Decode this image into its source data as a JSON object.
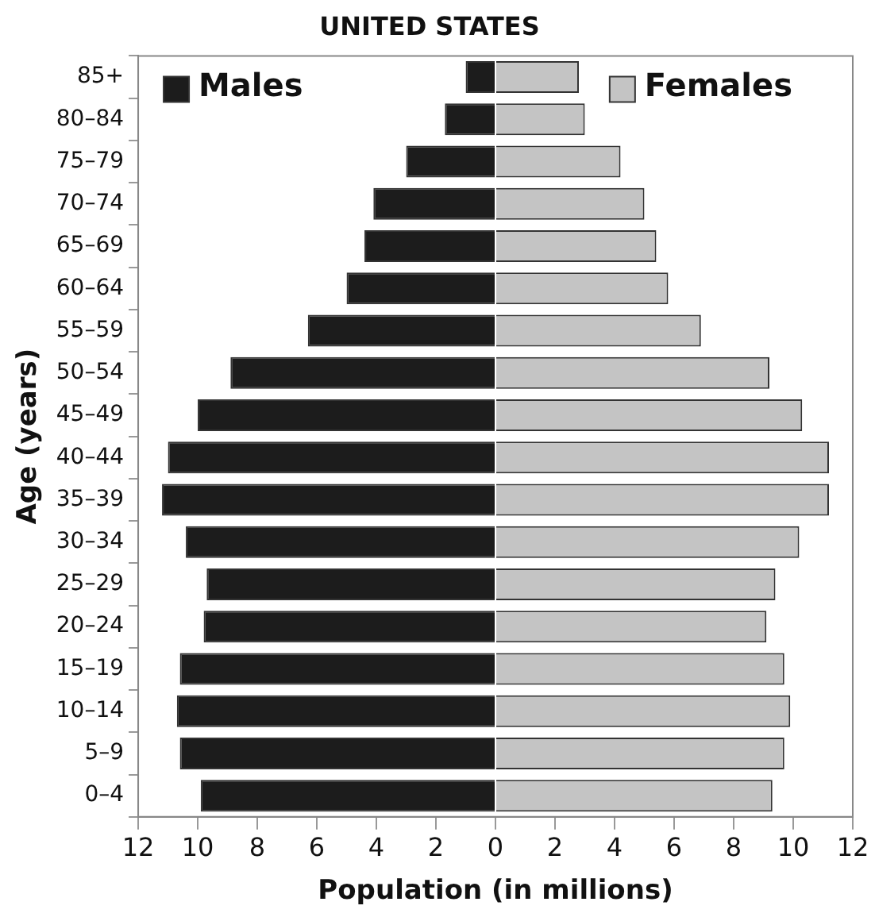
{
  "chart_data": {
    "type": "bar",
    "orientation": "horizontal",
    "stacked": true,
    "title": "UNITED STATES",
    "xlabel": "Population (in millions)",
    "ylabel": "Age (years)",
    "categories": [
      "85+",
      "80–84",
      "75–79",
      "70–74",
      "65–69",
      "60–64",
      "55–59",
      "50–54",
      "45–49",
      "40–44",
      "35–39",
      "30–34",
      "25–29",
      "20–24",
      "15–19",
      "10–14",
      "5–9",
      "0–4"
    ],
    "series": [
      {
        "name": "Males",
        "color": "#1c1c1c",
        "values": [
          -1.0,
          -1.7,
          -3.0,
          -4.1,
          -4.4,
          -5.0,
          -6.3,
          -8.9,
          -10.0,
          -11.0,
          -11.2,
          -10.4,
          -9.7,
          -9.8,
          -10.6,
          -10.7,
          -10.6,
          -9.9
        ]
      },
      {
        "name": "Females",
        "color": "#c4c4c4",
        "values": [
          2.8,
          3.0,
          4.2,
          5.0,
          5.4,
          5.8,
          6.9,
          9.2,
          10.3,
          11.2,
          11.2,
          10.2,
          9.4,
          9.1,
          9.7,
          9.9,
          9.7,
          9.3
        ]
      }
    ],
    "xlim": [
      -12,
      12
    ],
    "xticks": [
      {
        "value": -12,
        "label": "12"
      },
      {
        "value": -10,
        "label": "10"
      },
      {
        "value": -8,
        "label": "8"
      },
      {
        "value": -6,
        "label": "6"
      },
      {
        "value": -4,
        "label": "4"
      },
      {
        "value": -2,
        "label": "2"
      },
      0,
      2,
      4,
      6,
      8,
      10,
      12
    ],
    "grid": false,
    "legend": "top"
  }
}
